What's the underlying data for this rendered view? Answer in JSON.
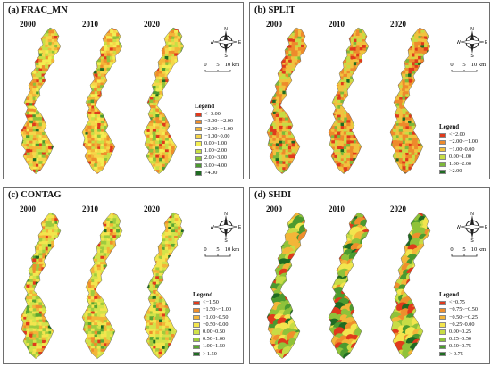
{
  "years": [
    "2000",
    "2010",
    "2020"
  ],
  "compass": {
    "n": "N",
    "s": "S",
    "e": "E",
    "w": "W"
  },
  "scale": {
    "t0": "0",
    "t1": "5",
    "t2": "10 km"
  },
  "panels": [
    {
      "title": "(a) FRAC_MN",
      "legend_title": "Legend",
      "palette": [
        "#e03a1c",
        "#ef8e2c",
        "#f3b538",
        "#f6d64a",
        "#f3ee52",
        "#c9df45",
        "#8fc23a",
        "#4c9a2f",
        "#1f6b22"
      ],
      "mix": [
        0.06,
        0.14,
        0.18,
        0.22,
        0.17,
        0.12,
        0.07,
        0.03,
        0.01
      ],
      "items": [
        {
          "label": "<−3.00",
          "color": "#e03a1c"
        },
        {
          "label": "−3.00~−2.00",
          "color": "#ef8e2c"
        },
        {
          "label": "−2.00~−1.00",
          "color": "#f3b538"
        },
        {
          "label": "−1.00~0.00",
          "color": "#f6d64a"
        },
        {
          "label": "0.00~1.00",
          "color": "#f3ee52"
        },
        {
          "label": "1.00~2.00",
          "color": "#c9df45"
        },
        {
          "label": "2.00~3.00",
          "color": "#8fc23a"
        },
        {
          "label": "3.00~4.00",
          "color": "#4c9a2f"
        },
        {
          "label": ">4.00",
          "color": "#1f6b22"
        }
      ]
    },
    {
      "title": "(b) SPLIT",
      "legend_title": "Legend",
      "palette": [
        "#e03a1c",
        "#ee8a2c",
        "#f1c23f",
        "#c7dc45",
        "#7eb93a",
        "#1f6b22"
      ],
      "mix": [
        0.1,
        0.3,
        0.32,
        0.18,
        0.08,
        0.02
      ],
      "items": [
        {
          "label": "<−2.00",
          "color": "#e03a1c"
        },
        {
          "label": "−2.00~−1.00",
          "color": "#ee8a2c"
        },
        {
          "label": "−1.00~0.00",
          "color": "#f1c23f"
        },
        {
          "label": "0.00~1.00",
          "color": "#c7dc45"
        },
        {
          "label": "1.00~2.00",
          "color": "#7eb93a"
        },
        {
          "label": ">2.00",
          "color": "#1f6b22"
        }
      ]
    },
    {
      "title": "(c) CONTAG",
      "legend_title": "Legend",
      "palette": [
        "#e03a1c",
        "#ef8e2c",
        "#f3b538",
        "#f3e54e",
        "#d2e34a",
        "#9fcb3e",
        "#5aa532",
        "#1f6b22"
      ],
      "mix": [
        0.04,
        0.08,
        0.16,
        0.26,
        0.24,
        0.14,
        0.06,
        0.02
      ],
      "items": [
        {
          "label": "<−1.50",
          "color": "#e03a1c"
        },
        {
          "label": "−1.50~−1.00",
          "color": "#ef8e2c"
        },
        {
          "label": "−1.00~0.50",
          "color": "#f3b538"
        },
        {
          "label": "−0.50~0.00",
          "color": "#f3e54e"
        },
        {
          "label": "0.00~0.50",
          "color": "#d2e34a"
        },
        {
          "label": "0.50~1.00",
          "color": "#9fcb3e"
        },
        {
          "label": "1.00~1.50",
          "color": "#5aa532"
        },
        {
          "label": "> 1.50",
          "color": "#1f6b22"
        }
      ]
    },
    {
      "title": "(d) SHDI",
      "legend_title": "Legend",
      "palette": [
        "#e03a1c",
        "#ef8e2c",
        "#f3b538",
        "#f3e54e",
        "#c7dc45",
        "#8fc23a",
        "#4c9a2f",
        "#1f6b22"
      ],
      "mix": [
        0.1,
        0.12,
        0.12,
        0.12,
        0.16,
        0.18,
        0.13,
        0.07
      ],
      "items": [
        {
          "label": "<−0.75",
          "color": "#e03a1c"
        },
        {
          "label": "−0.75~−0.50",
          "color": "#ef8e2c"
        },
        {
          "label": "−0.50~−0.25",
          "color": "#f3b538"
        },
        {
          "label": "−0.25~0.00",
          "color": "#f3e54e"
        },
        {
          "label": "0.00~0.25",
          "color": "#c7dc45"
        },
        {
          "label": "0.25~0.50",
          "color": "#8fc23a"
        },
        {
          "label": "0.50~0.75",
          "color": "#4c9a2f"
        },
        {
          "label": "> 0.75",
          "color": "#1f6b22"
        }
      ]
    }
  ]
}
